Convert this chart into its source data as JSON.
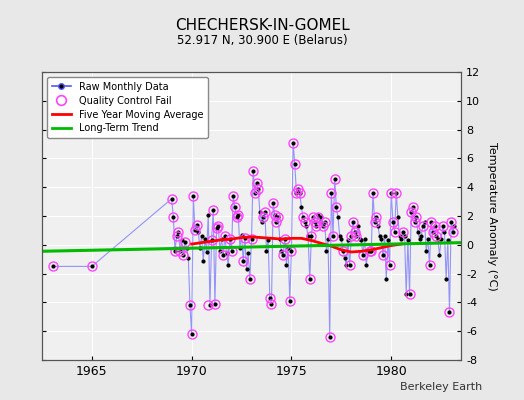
{
  "title": "CHECHERSK-IN-GOMEL",
  "subtitle": "52.917 N, 30.900 E (Belarus)",
  "ylabel": "Temperature Anomaly (°C)",
  "credit": "Berkeley Earth",
  "ylim": [
    -8,
    12
  ],
  "yticks": [
    -8,
    -6,
    -4,
    -2,
    0,
    2,
    4,
    6,
    8,
    10,
    12
  ],
  "xlim": [
    1962.5,
    1983.5
  ],
  "xticks": [
    1965,
    1970,
    1975,
    1980
  ],
  "background_color": "#e8e8e8",
  "plot_bg": "#f0f0f0",
  "grid_color": "#ffffff",
  "raw_x": [
    1963.0417,
    1965.0,
    1969.0,
    1969.0833,
    1969.1667,
    1969.25,
    1969.3333,
    1969.4167,
    1969.5,
    1969.5833,
    1969.6667,
    1969.75,
    1969.8333,
    1969.9167,
    1970.0,
    1970.0833,
    1970.1667,
    1970.25,
    1970.3333,
    1970.4167,
    1970.5,
    1970.5833,
    1970.6667,
    1970.75,
    1970.8333,
    1970.9167,
    1971.0,
    1971.0833,
    1971.1667,
    1971.25,
    1971.3333,
    1971.4167,
    1971.5,
    1971.5833,
    1971.6667,
    1971.75,
    1971.8333,
    1971.9167,
    1972.0,
    1972.0833,
    1972.1667,
    1972.25,
    1972.3333,
    1972.4167,
    1972.5,
    1972.5833,
    1972.6667,
    1972.75,
    1972.8333,
    1972.9167,
    1973.0,
    1973.0833,
    1973.1667,
    1973.25,
    1973.3333,
    1973.4167,
    1973.5,
    1973.5833,
    1973.6667,
    1973.75,
    1973.8333,
    1973.9167,
    1974.0,
    1974.0833,
    1974.1667,
    1974.25,
    1974.3333,
    1974.4167,
    1974.5,
    1974.5833,
    1974.6667,
    1974.75,
    1974.8333,
    1974.9167,
    1975.0,
    1975.0833,
    1975.1667,
    1975.25,
    1975.3333,
    1975.4167,
    1975.5,
    1975.5833,
    1975.6667,
    1975.75,
    1975.8333,
    1975.9167,
    1976.0,
    1976.0833,
    1976.1667,
    1976.25,
    1976.3333,
    1976.4167,
    1976.5,
    1976.5833,
    1976.6667,
    1976.75,
    1976.8333,
    1976.9167,
    1977.0,
    1977.0833,
    1977.1667,
    1977.25,
    1977.3333,
    1977.4167,
    1977.5,
    1977.5833,
    1977.6667,
    1977.75,
    1977.8333,
    1977.9167,
    1978.0,
    1978.0833,
    1978.1667,
    1978.25,
    1978.3333,
    1978.4167,
    1978.5,
    1978.5833,
    1978.6667,
    1978.75,
    1978.8333,
    1978.9167,
    1979.0,
    1979.0833,
    1979.1667,
    1979.25,
    1979.3333,
    1979.4167,
    1979.5,
    1979.5833,
    1979.6667,
    1979.75,
    1979.8333,
    1979.9167,
    1980.0,
    1980.0833,
    1980.1667,
    1980.25,
    1980.3333,
    1980.4167,
    1980.5,
    1980.5833,
    1980.6667,
    1980.75,
    1980.8333,
    1980.9167,
    1981.0,
    1981.0833,
    1981.1667,
    1981.25,
    1981.3333,
    1981.4167,
    1981.5,
    1981.5833,
    1981.6667,
    1981.75,
    1981.8333,
    1981.9167,
    1982.0,
    1982.0833,
    1982.1667,
    1982.25,
    1982.3333,
    1982.4167,
    1982.5,
    1982.5833,
    1982.6667,
    1982.75,
    1982.8333,
    1982.9167,
    1983.0,
    1983.0833,
    1983.1667
  ],
  "raw_y": [
    -1.5,
    -1.5,
    3.2,
    1.9,
    -0.4,
    0.6,
    0.9,
    -0.4,
    0.3,
    -0.7,
    0.2,
    -0.2,
    -0.9,
    -4.2,
    -6.2,
    3.4,
    1.0,
    1.4,
    0.9,
    -0.2,
    0.6,
    -1.1,
    0.4,
    -0.5,
    2.1,
    -4.2,
    0.3,
    2.4,
    -4.1,
    1.2,
    1.3,
    -0.4,
    0.4,
    -0.7,
    0.6,
    -0.6,
    -1.4,
    0.4,
    -0.4,
    3.4,
    2.6,
    1.9,
    2.1,
    -0.2,
    0.7,
    -1.1,
    0.5,
    -1.7,
    -0.6,
    -2.4,
    0.4,
    5.1,
    3.6,
    4.3,
    3.9,
    2.3,
    1.6,
    1.9,
    2.3,
    -0.4,
    0.3,
    -3.7,
    -4.1,
    2.9,
    2.1,
    1.6,
    1.9,
    0.4,
    -0.4,
    -0.7,
    0.4,
    -1.4,
    -0.2,
    -3.9,
    -0.4,
    7.1,
    5.6,
    3.6,
    3.9,
    3.6,
    2.6,
    1.9,
    1.6,
    1.3,
    0.6,
    -2.4,
    0.6,
    1.9,
    1.6,
    1.3,
    2.1,
    1.6,
    1.9,
    1.3,
    1.6,
    -0.4,
    0.4,
    -6.4,
    3.6,
    0.6,
    4.6,
    2.6,
    1.9,
    0.6,
    0.4,
    -0.4,
    -0.9,
    -1.4,
    0.3,
    -1.4,
    0.6,
    1.6,
    0.9,
    0.6,
    1.3,
    0.4,
    0.3,
    -0.7,
    0.4,
    -1.4,
    -0.4,
    -0.4,
    -0.4,
    3.6,
    1.6,
    1.9,
    1.3,
    0.6,
    0.4,
    -0.7,
    0.6,
    -2.4,
    0.3,
    -1.4,
    3.6,
    1.6,
    0.9,
    3.6,
    1.9,
    0.6,
    0.4,
    0.9,
    0.6,
    -3.4,
    0.3,
    -3.4,
    2.3,
    2.6,
    1.6,
    1.9,
    0.9,
    0.4,
    0.6,
    1.3,
    1.6,
    -0.4,
    0.4,
    -1.4,
    1.6,
    0.9,
    1.3,
    0.6,
    0.4,
    -0.7,
    0.4,
    1.3,
    0.9,
    -2.4,
    0.3,
    -4.7,
    1.6,
    0.9,
    1.3
  ],
  "qc_x": [
    1963.0417,
    1965.0,
    1969.0,
    1969.0833,
    1969.1667,
    1969.25,
    1969.3333,
    1969.4167,
    1969.5833,
    1969.6667,
    1969.9167,
    1970.0,
    1970.0833,
    1970.1667,
    1970.25,
    1970.8333,
    1971.0,
    1971.0833,
    1971.1667,
    1971.25,
    1971.3333,
    1971.5833,
    1971.6667,
    1971.9167,
    1972.0,
    1972.0833,
    1972.1667,
    1972.25,
    1972.3333,
    1972.5833,
    1972.6667,
    1972.9167,
    1973.0,
    1973.0833,
    1973.1667,
    1973.25,
    1973.3333,
    1973.5833,
    1973.6667,
    1973.9167,
    1974.0,
    1974.0833,
    1974.1667,
    1974.25,
    1974.3333,
    1974.5833,
    1974.6667,
    1974.9167,
    1975.0,
    1975.0833,
    1975.1667,
    1975.25,
    1975.3333,
    1975.4167,
    1975.5833,
    1975.6667,
    1975.9167,
    1976.0,
    1976.0833,
    1976.1667,
    1976.25,
    1976.3333,
    1976.5833,
    1976.6667,
    1976.9167,
    1977.0,
    1977.0833,
    1977.1667,
    1977.25,
    1977.5833,
    1977.9167,
    1978.0,
    1978.0833,
    1978.1667,
    1978.25,
    1978.5833,
    1978.9167,
    1979.0,
    1979.0833,
    1979.1667,
    1979.25,
    1979.5833,
    1979.9167,
    1980.0,
    1980.0833,
    1980.1667,
    1980.25,
    1980.5833,
    1980.9167,
    1981.0,
    1981.0833,
    1981.1667,
    1981.25,
    1981.5833,
    1981.9167,
    1982.0,
    1982.0833,
    1982.1667,
    1982.25,
    1982.5833,
    1982.9167,
    1983.0,
    1983.0833
  ],
  "qc_y": [
    -1.5,
    -1.5,
    3.2,
    1.9,
    -0.4,
    0.6,
    0.9,
    -0.4,
    -0.7,
    0.2,
    -4.2,
    -6.2,
    3.4,
    1.0,
    1.4,
    -4.2,
    0.3,
    2.4,
    -4.1,
    1.2,
    1.3,
    -0.7,
    0.6,
    0.4,
    -0.4,
    3.4,
    2.6,
    1.9,
    2.1,
    -1.1,
    0.5,
    -2.4,
    0.4,
    5.1,
    3.6,
    4.3,
    3.9,
    1.9,
    2.3,
    -3.7,
    -4.1,
    2.9,
    2.1,
    1.6,
    1.9,
    -0.7,
    0.4,
    -3.9,
    -0.4,
    7.1,
    5.6,
    3.6,
    3.9,
    3.6,
    1.9,
    1.6,
    -2.4,
    0.6,
    1.9,
    1.6,
    1.3,
    1.9,
    1.3,
    1.6,
    -6.4,
    3.6,
    0.6,
    4.6,
    2.6,
    -0.4,
    -1.4,
    0.6,
    1.6,
    0.9,
    0.6,
    -0.7,
    -0.4,
    -0.4,
    3.6,
    1.6,
    1.9,
    -0.7,
    -1.4,
    3.6,
    1.6,
    0.9,
    3.6,
    0.9,
    -3.4,
    2.3,
    2.6,
    1.6,
    1.9,
    1.3,
    -1.4,
    1.6,
    0.9,
    1.3,
    0.6,
    1.3,
    -4.7,
    1.6,
    0.9
  ],
  "five_yr_avg_x": [
    1970.0,
    1970.5,
    1971.0,
    1971.5,
    1972.0,
    1972.5,
    1973.0,
    1973.5,
    1974.0,
    1974.5,
    1975.0,
    1975.5,
    1976.0,
    1976.5,
    1977.0,
    1977.5,
    1978.0,
    1978.5,
    1979.0,
    1979.5,
    1980.0,
    1980.5
  ],
  "five_yr_avg_y": [
    0.05,
    0.15,
    0.25,
    0.35,
    0.4,
    0.5,
    0.55,
    0.5,
    0.45,
    0.4,
    0.45,
    0.45,
    0.3,
    0.1,
    -0.1,
    -0.35,
    -0.5,
    -0.45,
    -0.35,
    -0.2,
    -0.05,
    0.05
  ],
  "trend_x": [
    1962.5,
    1983.5
  ],
  "trend_y": [
    -0.45,
    0.15
  ],
  "line_color": "#5555ff",
  "line_alpha": 0.6,
  "marker_color": "#000000",
  "qc_color": "#ff44ff",
  "five_yr_color": "#ff0000",
  "trend_color": "#00bb00"
}
